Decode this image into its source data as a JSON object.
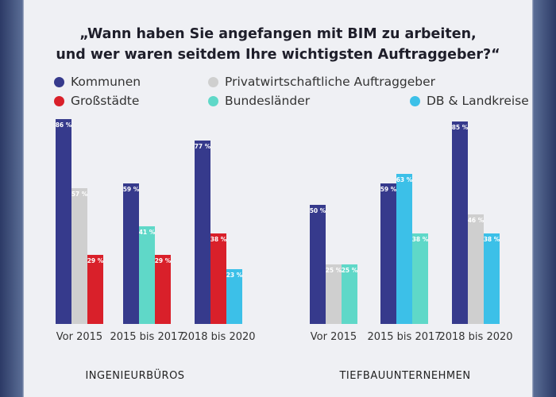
{
  "chart_data": {
    "type": "bar",
    "title": "„Wann haben Sie angefangen mit BIM zu arbeiten,\nund wer waren seitdem Ihre wichtigsten Auftraggeber?“",
    "title_lines": [
      "„Wann haben Sie angefangen mit BIM zu arbeiten,",
      "und wer waren seitdem Ihre wichtigsten Auftraggeber?“"
    ],
    "ylim": [
      0,
      100
    ],
    "grid": false,
    "legend": [
      {
        "name": "Kommunen",
        "color": "#363a8c"
      },
      {
        "name": "Privatwirtschaftliche Auftraggeber",
        "color": "#cfcfcf"
      },
      {
        "name": "Großstädte",
        "color": "#d9202a"
      },
      {
        "name": "Bundesländer",
        "color": "#5fd8c8"
      },
      {
        "name": "DB & Landkreise",
        "color": "#3cc0e8"
      }
    ],
    "panels": [
      {
        "name": "INGENIEURBÜROS",
        "categories": [
          {
            "label": "Vor 2015",
            "bars": [
              {
                "series": "Kommunen",
                "value": 86
              },
              {
                "series": "Privatwirtschaftliche Auftraggeber",
                "value": 57
              },
              {
                "series": "Großstädte",
                "value": 29
              }
            ]
          },
          {
            "label": "2015 bis 2017",
            "bars": [
              {
                "series": "Kommunen",
                "value": 59
              },
              {
                "series": "Bundesländer",
                "value": 41
              },
              {
                "series": "Großstädte",
                "value": 29
              }
            ]
          },
          {
            "label": "2018 bis 2020",
            "bars": [
              {
                "series": "Kommunen",
                "value": 77
              },
              {
                "series": "Großstädte",
                "value": 38
              },
              {
                "series": "DB & Landkreise",
                "value": 23
              }
            ]
          }
        ]
      },
      {
        "name": "TIEFBAUUNTERNEHMEN",
        "categories": [
          {
            "label": "Vor 2015",
            "bars": [
              {
                "series": "Kommunen",
                "value": 50
              },
              {
                "series": "Privatwirtschaftliche Auftraggeber",
                "value": 25
              },
              {
                "series": "Bundesländer",
                "value": 25
              }
            ]
          },
          {
            "label": "2015 bis 2017",
            "bars": [
              {
                "series": "Kommunen",
                "value": 59
              },
              {
                "series": "DB & Landkreise",
                "value": 63
              },
              {
                "series": "Bundesländer",
                "value": 38
              }
            ]
          },
          {
            "label": "2018 bis 2020",
            "bars": [
              {
                "series": "Kommunen",
                "value": 85
              },
              {
                "series": "Privatwirtschaftliche Auftraggeber",
                "value": 46
              },
              {
                "series": "DB & Landkreise",
                "value": 38
              }
            ]
          }
        ]
      }
    ]
  }
}
